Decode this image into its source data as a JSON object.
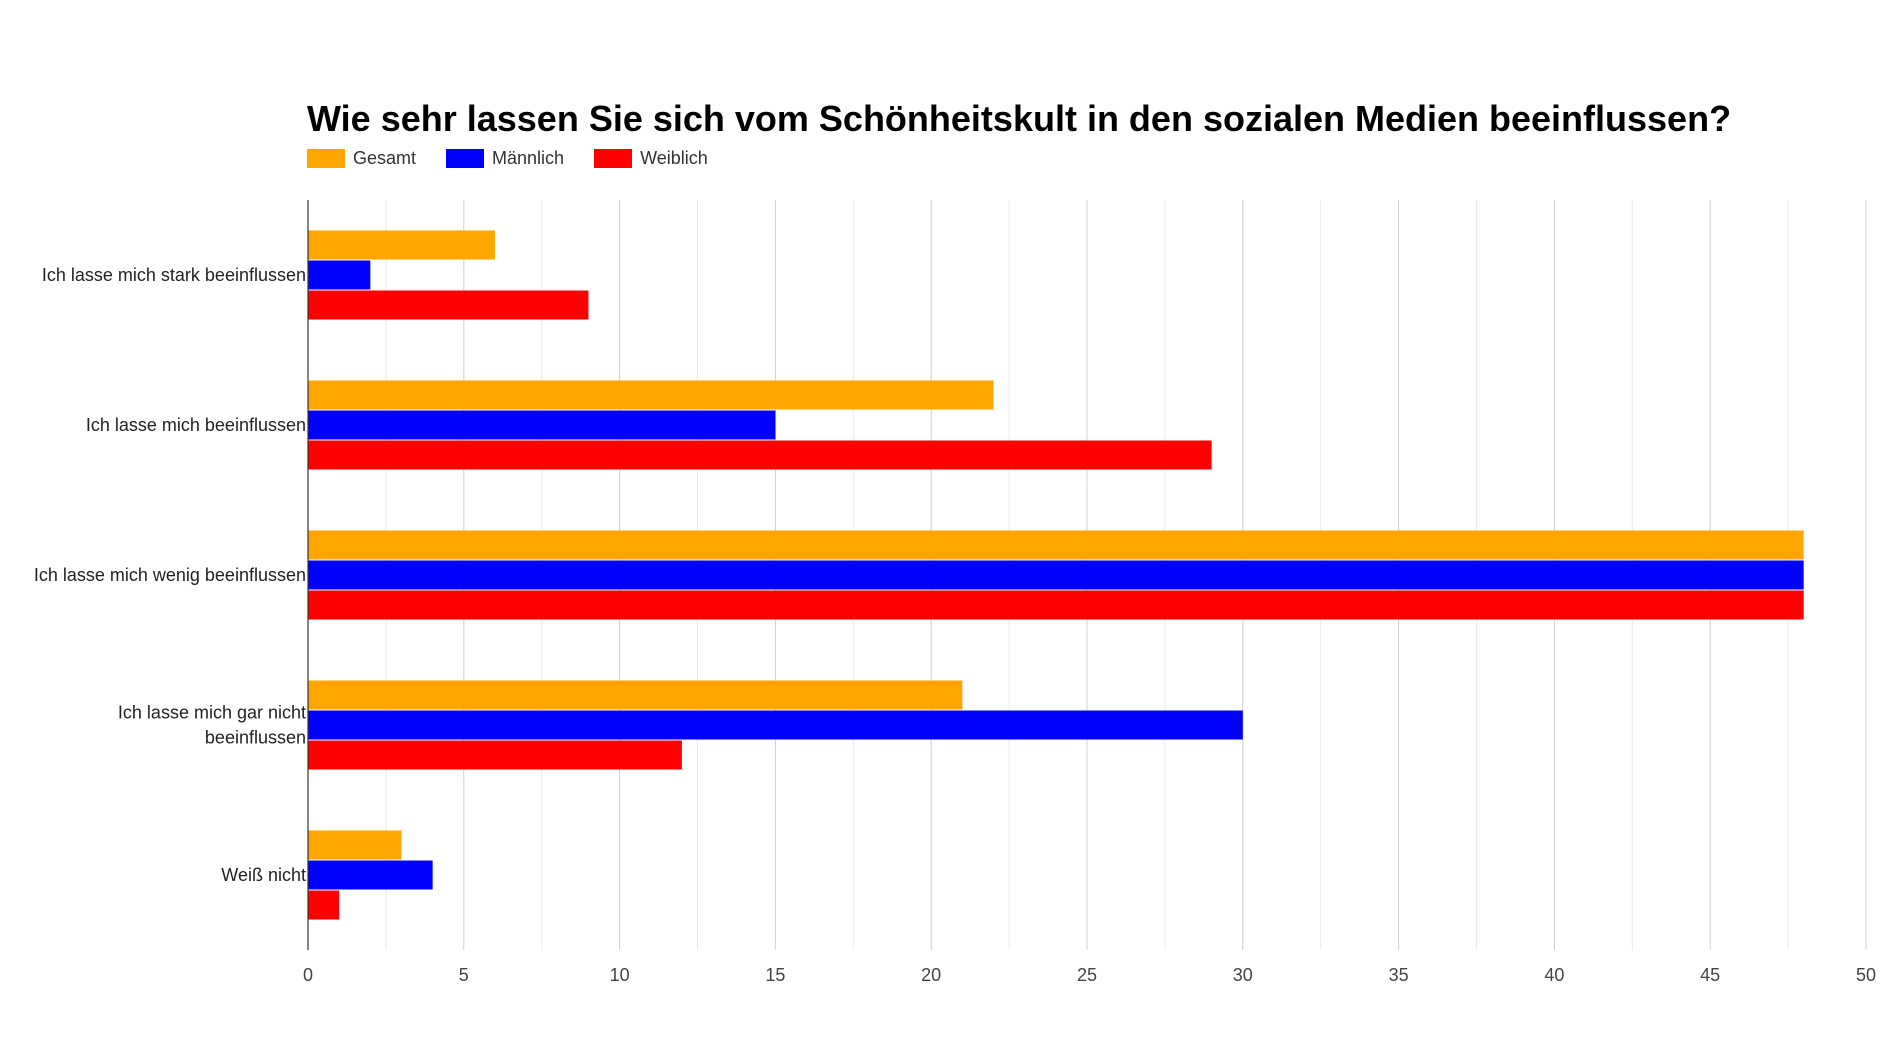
{
  "chart_data": {
    "type": "bar",
    "orientation": "horizontal",
    "title": "Wie sehr lassen Sie sich vom Schönheitskult in den sozialen Medien beeinflussen?",
    "categories": [
      [
        "Ich lasse mich stark beeinflussen"
      ],
      [
        "Ich lasse mich beeinflussen"
      ],
      [
        "Ich lasse mich wenig beeinflussen"
      ],
      [
        "Ich lasse mich gar nicht",
        "beeinflussen"
      ],
      [
        "Weiß nicht"
      ]
    ],
    "series": [
      {
        "name": "Gesamt",
        "color": "#FFA500",
        "values": [
          6,
          22,
          48,
          21,
          3
        ]
      },
      {
        "name": "Männlich",
        "color": "#0000FF",
        "values": [
          2,
          15,
          48,
          30,
          4
        ]
      },
      {
        "name": "Weiblich",
        "color": "#FF0000",
        "values": [
          9,
          29,
          48,
          12,
          1
        ]
      }
    ],
    "xlim": [
      0,
      50
    ],
    "xticks": [
      "0",
      "5",
      "10",
      "15",
      "20",
      "25",
      "30",
      "35",
      "40",
      "45",
      "50"
    ],
    "xlabel": "",
    "ylabel": "",
    "grid": true,
    "legend_position": "top-left"
  }
}
